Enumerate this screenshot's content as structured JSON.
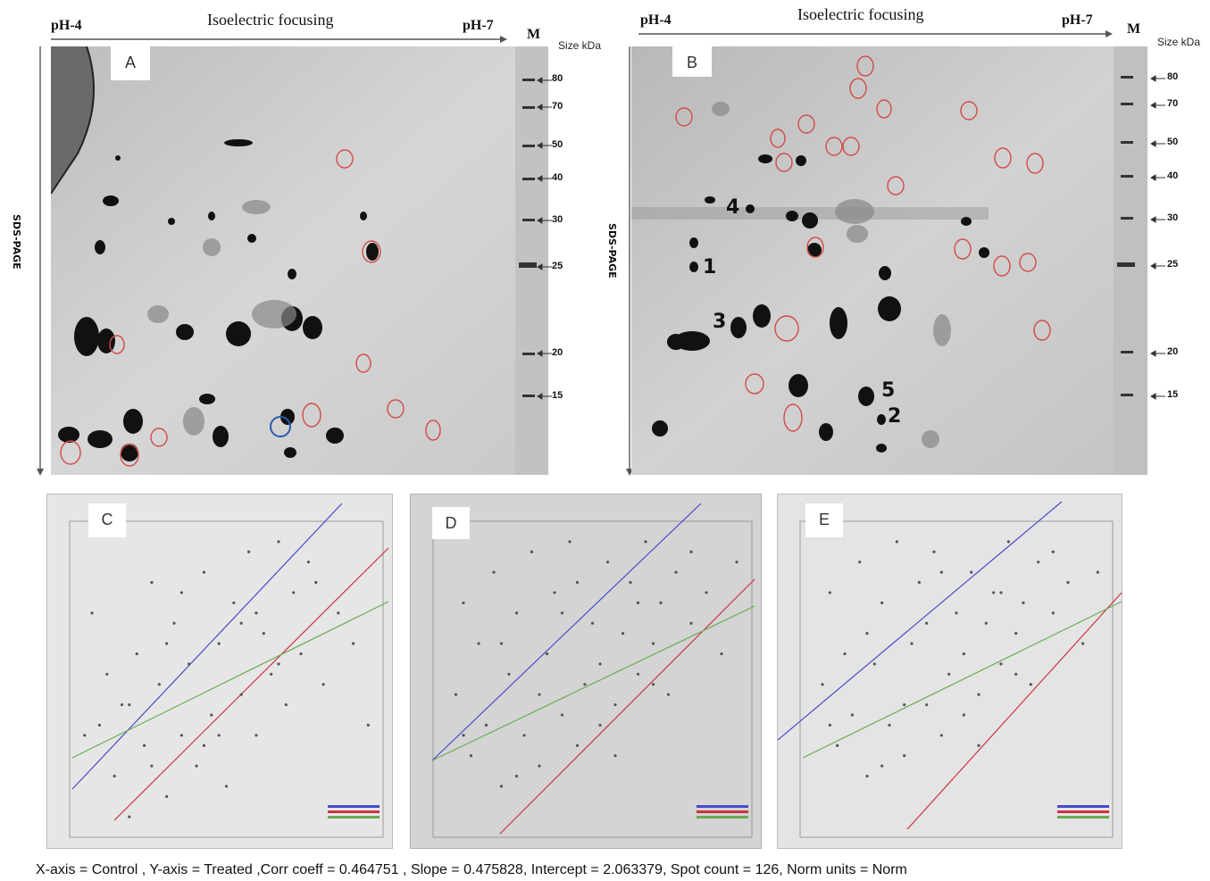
{
  "gel_a": {
    "panel_label": "A",
    "ph_left": "pH-4",
    "ph_right": "pH-7",
    "axis_title": "Isoelectric focusing",
    "marker_lane": "M",
    "size_label": "Size kDa",
    "side_label": "SDS-PAGE",
    "markers": [
      "80",
      "70",
      "50",
      "40",
      "30",
      "25",
      "20",
      "15"
    ]
  },
  "gel_b": {
    "panel_label": "B",
    "ph_left": "pH-4",
    "ph_right": "pH-7",
    "axis_title": "Isoelectric focusing",
    "marker_lane": "M",
    "size_label": "Size kDa",
    "side_label": "SDS-PAGE",
    "markers": [
      "80",
      "70",
      "50",
      "40",
      "30",
      "25",
      "20",
      "15"
    ],
    "spot_numbers": [
      "1",
      "2",
      "3",
      "4",
      "5"
    ]
  },
  "colors": {
    "line_blue": "#4a4ac8",
    "line_red": "#cc3344",
    "line_green": "#6aaa55",
    "circle_red": "#d24a4a",
    "circle_blue": "#2a5aa8"
  },
  "chart_data": [
    {
      "type": "scatter",
      "panel": "C",
      "lines": [
        "blue",
        "red",
        "green"
      ],
      "points": [
        [
          2.5,
          4.2
        ],
        [
          2.6,
          3.1
        ],
        [
          2.7,
          3.6
        ],
        [
          2.8,
          2.6
        ],
        [
          2.9,
          3.3
        ],
        [
          3.0,
          2.2
        ],
        [
          3.1,
          3.8
        ],
        [
          3.2,
          2.9
        ],
        [
          3.3,
          4.5
        ],
        [
          3.4,
          3.5
        ],
        [
          3.5,
          2.4
        ],
        [
          3.6,
          4.1
        ],
        [
          3.7,
          3.0
        ],
        [
          3.8,
          3.7
        ],
        [
          3.9,
          2.7
        ],
        [
          4.0,
          4.6
        ],
        [
          4.1,
          3.2
        ],
        [
          4.2,
          3.9
        ],
        [
          4.3,
          2.5
        ],
        [
          4.4,
          4.3
        ],
        [
          4.5,
          3.4
        ],
        [
          4.6,
          4.8
        ],
        [
          4.7,
          3.0
        ],
        [
          4.8,
          4.0
        ],
        [
          4.9,
          3.6
        ],
        [
          5.0,
          4.9
        ],
        [
          5.1,
          3.3
        ],
        [
          5.2,
          4.4
        ],
        [
          5.3,
          3.8
        ],
        [
          5.4,
          4.7
        ],
        [
          5.6,
          3.5
        ],
        [
          5.8,
          4.2
        ],
        [
          6.0,
          3.9
        ],
        [
          6.2,
          3.1
        ],
        [
          2.4,
          3.0
        ],
        [
          3.0,
          3.3
        ],
        [
          3.5,
          3.9
        ],
        [
          4.0,
          2.9
        ],
        [
          4.5,
          4.1
        ],
        [
          5.0,
          3.7
        ],
        [
          5.5,
          4.5
        ],
        [
          3.3,
          2.7
        ],
        [
          3.7,
          4.4
        ],
        [
          4.2,
          3.0
        ],
        [
          4.7,
          4.2
        ]
      ]
    },
    {
      "type": "scatter",
      "panel": "D",
      "lines": [
        "blue",
        "red",
        "green"
      ],
      "points": [
        [
          2.5,
          3.4
        ],
        [
          2.6,
          4.3
        ],
        [
          2.7,
          2.8
        ],
        [
          2.8,
          3.9
        ],
        [
          2.9,
          3.1
        ],
        [
          3.0,
          4.6
        ],
        [
          3.1,
          2.5
        ],
        [
          3.2,
          3.6
        ],
        [
          3.3,
          4.2
        ],
        [
          3.4,
          3.0
        ],
        [
          3.5,
          4.8
        ],
        [
          3.6,
          2.7
        ],
        [
          3.7,
          3.8
        ],
        [
          3.8,
          4.4
        ],
        [
          3.9,
          3.2
        ],
        [
          4.0,
          4.9
        ],
        [
          4.1,
          2.9
        ],
        [
          4.2,
          3.5
        ],
        [
          4.3,
          4.1
        ],
        [
          4.4,
          3.7
        ],
        [
          4.5,
          4.7
        ],
        [
          4.6,
          3.3
        ],
        [
          4.7,
          4.0
        ],
        [
          4.8,
          4.5
        ],
        [
          4.9,
          3.6
        ],
        [
          5.0,
          4.9
        ],
        [
          5.1,
          3.9
        ],
        [
          5.2,
          4.3
        ],
        [
          5.3,
          3.4
        ],
        [
          5.4,
          4.6
        ],
        [
          5.6,
          4.1
        ],
        [
          5.8,
          4.4
        ],
        [
          6.0,
          3.8
        ],
        [
          6.2,
          4.7
        ],
        [
          2.6,
          3.0
        ],
        [
          3.1,
          3.9
        ],
        [
          3.6,
          3.4
        ],
        [
          4.1,
          4.5
        ],
        [
          4.6,
          2.8
        ],
        [
          5.1,
          3.5
        ],
        [
          5.6,
          4.8
        ],
        [
          3.3,
          2.6
        ],
        [
          3.9,
          4.2
        ],
        [
          4.4,
          3.1
        ],
        [
          4.9,
          4.3
        ]
      ]
    },
    {
      "type": "scatter",
      "panel": "E",
      "lines": [
        "blue",
        "red",
        "green"
      ],
      "points": [
        [
          2.5,
          3.5
        ],
        [
          2.6,
          4.4
        ],
        [
          2.7,
          2.9
        ],
        [
          2.8,
          3.8
        ],
        [
          2.9,
          3.2
        ],
        [
          3.0,
          4.7
        ],
        [
          3.1,
          2.6
        ],
        [
          3.2,
          3.7
        ],
        [
          3.3,
          4.3
        ],
        [
          3.4,
          3.1
        ],
        [
          3.5,
          4.9
        ],
        [
          3.6,
          2.8
        ],
        [
          3.7,
          3.9
        ],
        [
          3.8,
          4.5
        ],
        [
          3.9,
          3.3
        ],
        [
          4.0,
          4.8
        ],
        [
          4.1,
          3.0
        ],
        [
          4.2,
          3.6
        ],
        [
          4.3,
          4.2
        ],
        [
          4.4,
          3.8
        ],
        [
          4.5,
          4.6
        ],
        [
          4.6,
          3.4
        ],
        [
          4.7,
          4.1
        ],
        [
          4.8,
          4.4
        ],
        [
          4.9,
          3.7
        ],
        [
          5.0,
          4.9
        ],
        [
          5.1,
          4.0
        ],
        [
          5.2,
          4.3
        ],
        [
          5.3,
          3.5
        ],
        [
          5.4,
          4.7
        ],
        [
          5.6,
          4.2
        ],
        [
          5.8,
          4.5
        ],
        [
          6.0,
          3.9
        ],
        [
          6.2,
          4.6
        ],
        [
          2.6,
          3.1
        ],
        [
          3.1,
          4.0
        ],
        [
          3.6,
          3.3
        ],
        [
          4.1,
          4.6
        ],
        [
          4.6,
          2.9
        ],
        [
          5.1,
          3.6
        ],
        [
          5.6,
          4.8
        ],
        [
          3.3,
          2.7
        ],
        [
          3.9,
          4.1
        ],
        [
          4.4,
          3.2
        ],
        [
          4.9,
          4.4
        ]
      ]
    }
  ],
  "plots": [
    {
      "panel_label": "C"
    },
    {
      "panel_label": "D"
    },
    {
      "panel_label": "E"
    }
  ],
  "caption": "X-axis = Control , Y-axis = Treated ,Corr coeff = 0.464751 , Slope = 0.475828, Intercept = 2.063379, Spot count = 126, Norm units = Norm"
}
